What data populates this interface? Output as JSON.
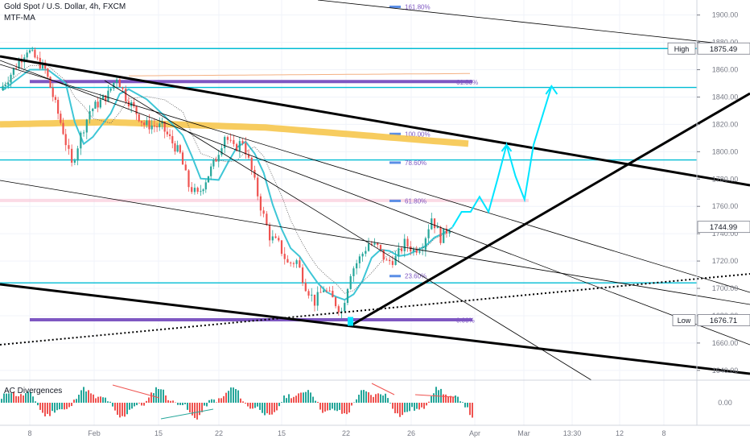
{
  "header": {
    "symbol_title": "Gold Spot / U.S. Dollar, 4h, FXCM",
    "indicator_main": "MTF-MA",
    "indicator_sub": "AC Divergences"
  },
  "chart_data": {
    "type": "candlestick",
    "price_axis": {
      "ticks": [
        1900,
        1880,
        1860,
        1840,
        1820,
        1800,
        1780,
        1760,
        1740,
        1720,
        1700,
        1680,
        1660,
        1640
      ],
      "labels": [
        "1900.00",
        "1880.00",
        "1860.00",
        "1840.00",
        "1820.00",
        "1800.00",
        "1780.00",
        "1760.00",
        "1740.00",
        "1720.00",
        "1700.00",
        "1680.00",
        "1660.00",
        "1640.00"
      ],
      "range": [
        1634,
        1911
      ]
    },
    "time_axis_labels": [
      "Feb",
      "8",
      "15",
      "22",
      "Mar",
      "8",
      "15",
      "22",
      "26",
      "Apr",
      "13:30",
      "12"
    ],
    "oscillator_axis_label": "0.00",
    "price_badges": [
      {
        "label": "High",
        "value": "1875.49",
        "price": 1875.49
      },
      {
        "label": "",
        "value": "1744.99",
        "price": 1744.99
      },
      {
        "label": "Low",
        "value": "1676.71",
        "price": 1676.71
      }
    ],
    "fib_levels": [
      {
        "label": "161.80%",
        "price": 1906
      },
      {
        "label": "61.80%",
        "price": 1851
      },
      {
        "label": "100.00%",
        "price": 1813
      },
      {
        "label": "78.60%",
        "price": 1792
      },
      {
        "label": "61.80%",
        "price": 1764
      },
      {
        "label": "23.60%",
        "price": 1709
      },
      {
        "label": "0.00%",
        "price": 1676.7
      }
    ],
    "horizontal_levels": [
      1875.49,
      1847,
      1794,
      1704
    ],
    "price_path": [
      [
        "Jan 29",
        1845
      ],
      [
        "Feb 1",
        1875
      ],
      [
        "Feb 3",
        1860
      ],
      [
        "Feb 5",
        1815
      ],
      [
        "Feb 6",
        1790
      ],
      [
        "Feb 7",
        1812
      ],
      [
        "Feb 8",
        1830
      ],
      [
        "Feb 10",
        1842
      ],
      [
        "Feb 11",
        1855
      ],
      [
        "Feb 12",
        1840
      ],
      [
        "Feb 14",
        1820
      ],
      [
        "Feb 16",
        1818
      ],
      [
        "Feb 18",
        1798
      ],
      [
        "Feb 19",
        1775
      ],
      [
        "Feb 20",
        1768
      ],
      [
        "Feb 22",
        1795
      ],
      [
        "Feb 23",
        1812
      ],
      [
        "Feb 24",
        1802
      ],
      [
        "Feb 25",
        1808
      ],
      [
        "Feb 26",
        1786
      ],
      [
        "Feb 27",
        1760
      ],
      [
        "Feb 28",
        1738
      ],
      [
        "Mar 1",
        1732
      ],
      [
        "Mar 2",
        1718
      ],
      [
        "Mar 3",
        1720
      ],
      [
        "Mar 4",
        1702
      ],
      [
        "Mar 5",
        1690
      ],
      [
        "Mar 6",
        1700
      ],
      [
        "Mar 7",
        1692
      ],
      [
        "Mar 8",
        1683
      ],
      [
        "Mar 9",
        1712
      ],
      [
        "Mar 10",
        1722
      ],
      [
        "Mar 11",
        1733
      ],
      [
        "Mar 12",
        1730
      ],
      [
        "Mar 13",
        1719
      ],
      [
        "Mar 14",
        1722
      ],
      [
        "Mar 15",
        1733
      ],
      [
        "Mar 16",
        1728
      ],
      [
        "Mar 17",
        1732
      ],
      [
        "Mar 18",
        1752
      ],
      [
        "Mar 19",
        1737
      ],
      [
        "Mar 20",
        1745
      ]
    ],
    "projection_path": [
      [
        "Mar 20",
        1745
      ],
      [
        "Mar 21",
        1756
      ],
      [
        "Mar 22",
        1756
      ],
      [
        "Mar 23",
        1767
      ],
      [
        "Mar 24",
        1756
      ],
      [
        "Mar 25",
        1780
      ],
      [
        "Mar 26",
        1805
      ],
      [
        "Mar 27",
        1782
      ],
      [
        "Mar 28",
        1765
      ],
      [
        "Mar 29",
        1805
      ],
      [
        "Mar 31",
        1848
      ]
    ],
    "colors": {
      "up": "#26a69a",
      "down": "#ef5350",
      "projection": "#00e5ff",
      "level": "#00bcd4",
      "fib": "#7e57c2",
      "ma_band": "#f6c343",
      "ma_fast": "#3ec6d6",
      "trendline": "#000000"
    }
  }
}
